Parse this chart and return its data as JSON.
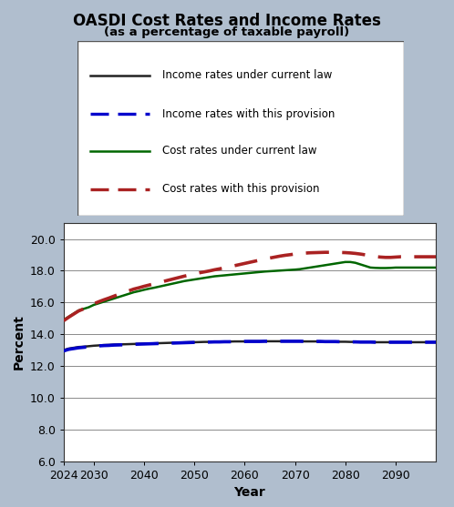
{
  "title": "OASDI Cost Rates and Income Rates",
  "subtitle": "(as a percentage of taxable payroll)",
  "xlabel": "Year",
  "ylabel": "Percent",
  "bg_color": "#b0bece",
  "ylim": [
    6.0,
    21.0
  ],
  "yticks": [
    6.0,
    8.0,
    10.0,
    12.0,
    14.0,
    16.0,
    18.0,
    20.0
  ],
  "xticks": [
    2024,
    2030,
    2040,
    2050,
    2060,
    2070,
    2080,
    2090
  ],
  "years": [
    2024,
    2025,
    2026,
    2027,
    2028,
    2029,
    2030,
    2031,
    2032,
    2033,
    2034,
    2035,
    2036,
    2037,
    2038,
    2039,
    2040,
    2041,
    2042,
    2043,
    2044,
    2045,
    2046,
    2047,
    2048,
    2049,
    2050,
    2051,
    2052,
    2053,
    2054,
    2055,
    2056,
    2057,
    2058,
    2059,
    2060,
    2061,
    2062,
    2063,
    2064,
    2065,
    2066,
    2067,
    2068,
    2069,
    2070,
    2071,
    2072,
    2073,
    2074,
    2075,
    2076,
    2077,
    2078,
    2079,
    2080,
    2081,
    2082,
    2083,
    2084,
    2085,
    2086,
    2087,
    2088,
    2089,
    2090,
    2091,
    2092,
    2093,
    2094,
    2095,
    2096,
    2097,
    2098
  ],
  "income_current_law": [
    13.0,
    13.1,
    13.15,
    13.2,
    13.22,
    13.25,
    13.28,
    13.3,
    13.32,
    13.33,
    13.35,
    13.36,
    13.37,
    13.38,
    13.39,
    13.4,
    13.41,
    13.42,
    13.43,
    13.44,
    13.45,
    13.46,
    13.47,
    13.48,
    13.49,
    13.5,
    13.5,
    13.51,
    13.52,
    13.52,
    13.53,
    13.53,
    13.54,
    13.54,
    13.55,
    13.55,
    13.55,
    13.56,
    13.56,
    13.56,
    13.56,
    13.56,
    13.56,
    13.56,
    13.56,
    13.56,
    13.56,
    13.56,
    13.55,
    13.55,
    13.55,
    13.55,
    13.54,
    13.54,
    13.54,
    13.53,
    13.53,
    13.52,
    13.52,
    13.51,
    13.51,
    13.51,
    13.5,
    13.5,
    13.5,
    13.5,
    13.5,
    13.5,
    13.5,
    13.5,
    13.5,
    13.5,
    13.5,
    13.5,
    13.5
  ],
  "income_provision": [
    12.95,
    13.05,
    13.1,
    13.15,
    13.18,
    13.21,
    13.24,
    13.27,
    13.29,
    13.3,
    13.32,
    13.33,
    13.34,
    13.35,
    13.37,
    13.38,
    13.39,
    13.4,
    13.41,
    13.42,
    13.43,
    13.44,
    13.45,
    13.46,
    13.47,
    13.48,
    13.49,
    13.5,
    13.5,
    13.51,
    13.52,
    13.52,
    13.53,
    13.53,
    13.54,
    13.54,
    13.55,
    13.55,
    13.55,
    13.55,
    13.56,
    13.56,
    13.56,
    13.56,
    13.56,
    13.56,
    13.56,
    13.56,
    13.55,
    13.55,
    13.55,
    13.55,
    13.54,
    13.54,
    13.54,
    13.53,
    13.53,
    13.52,
    13.52,
    13.51,
    13.51,
    13.51,
    13.5,
    13.5,
    13.5,
    13.5,
    13.5,
    13.5,
    13.5,
    13.5,
    13.5,
    13.5,
    13.5,
    13.5,
    13.5
  ],
  "cost_current_law": [
    14.9,
    15.1,
    15.3,
    15.5,
    15.6,
    15.7,
    15.85,
    15.95,
    16.05,
    16.15,
    16.25,
    16.35,
    16.45,
    16.55,
    16.65,
    16.72,
    16.8,
    16.87,
    16.93,
    17.0,
    17.07,
    17.14,
    17.21,
    17.28,
    17.35,
    17.4,
    17.45,
    17.5,
    17.55,
    17.6,
    17.65,
    17.68,
    17.71,
    17.74,
    17.77,
    17.8,
    17.83,
    17.86,
    17.89,
    17.92,
    17.95,
    17.97,
    17.99,
    18.01,
    18.03,
    18.05,
    18.07,
    18.1,
    18.15,
    18.2,
    18.25,
    18.3,
    18.35,
    18.4,
    18.45,
    18.5,
    18.55,
    18.55,
    18.5,
    18.4,
    18.3,
    18.2,
    18.18,
    18.17,
    18.17,
    18.18,
    18.2,
    18.2,
    18.2,
    18.2,
    18.2,
    18.2,
    18.2,
    18.2,
    18.2
  ],
  "cost_provision": [
    14.85,
    15.07,
    15.27,
    15.47,
    15.6,
    15.75,
    15.92,
    16.05,
    16.17,
    16.28,
    16.4,
    16.52,
    16.63,
    16.74,
    16.85,
    16.93,
    17.02,
    17.1,
    17.18,
    17.26,
    17.34,
    17.42,
    17.5,
    17.58,
    17.66,
    17.73,
    17.8,
    17.87,
    17.93,
    17.99,
    18.06,
    18.12,
    18.18,
    18.25,
    18.32,
    18.39,
    18.46,
    18.53,
    18.6,
    18.67,
    18.74,
    18.8,
    18.86,
    18.92,
    18.97,
    19.01,
    19.05,
    19.08,
    19.11,
    19.13,
    19.14,
    19.15,
    19.16,
    19.16,
    19.16,
    19.15,
    19.14,
    19.12,
    19.09,
    19.05,
    19.0,
    18.94,
    18.89,
    18.86,
    18.84,
    18.84,
    18.86,
    18.88,
    18.88,
    18.88,
    18.88,
    18.88,
    18.88,
    18.88,
    18.88
  ],
  "income_current_law_color": "#222222",
  "income_provision_color": "#0000cc",
  "cost_current_law_color": "#006600",
  "cost_provision_color": "#aa2222",
  "legend_labels": [
    "Income rates under current law",
    "Income rates with this provision",
    "Cost rates under current law",
    "Cost rates with this provision"
  ]
}
